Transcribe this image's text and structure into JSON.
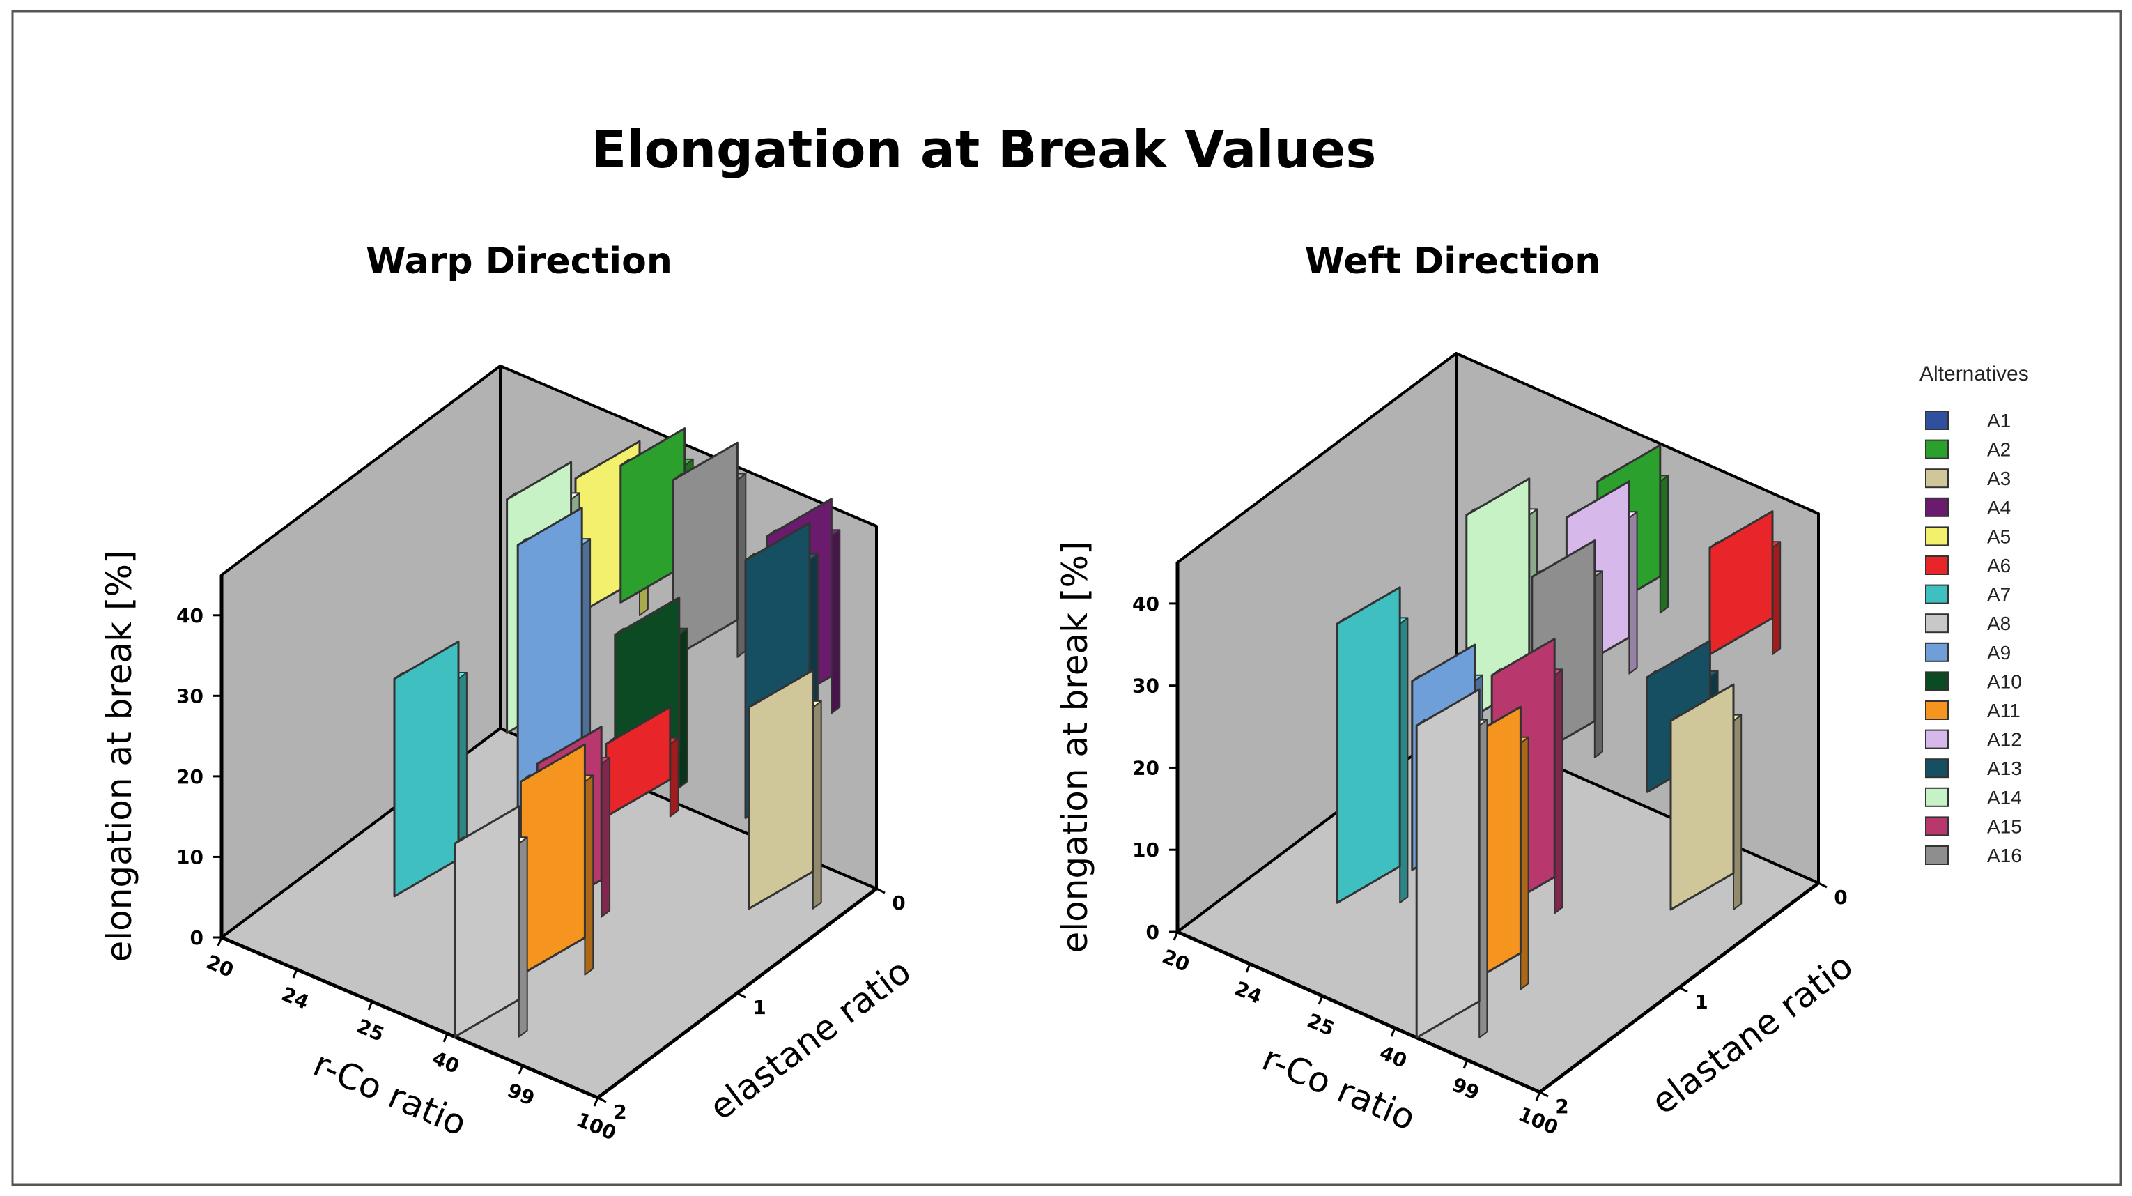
{
  "chart_data": {
    "type": "bar",
    "title": "Elongation at Break Values",
    "legend_title": "Alternatives",
    "legend_position": "right",
    "legend": [
      {
        "name": "A1",
        "color": "#2f4f9f"
      },
      {
        "name": "A2",
        "color": "#2ca02c"
      },
      {
        "name": "A3",
        "color": "#cfc69a"
      },
      {
        "name": "A4",
        "color": "#6a1b6e"
      },
      {
        "name": "A5",
        "color": "#f2f06c"
      },
      {
        "name": "A6",
        "color": "#e8262a"
      },
      {
        "name": "A7",
        "color": "#3fbfbf"
      },
      {
        "name": "A8",
        "color": "#c8c8c8"
      },
      {
        "name": "A9",
        "color": "#6f9fd8"
      },
      {
        "name": "A10",
        "color": "#0b4a22"
      },
      {
        "name": "A11",
        "color": "#f5951f"
      },
      {
        "name": "A12",
        "color": "#d7b8ea"
      },
      {
        "name": "A13",
        "color": "#174f62"
      },
      {
        "name": "A14",
        "color": "#c6f2c6"
      },
      {
        "name": "A15",
        "color": "#b8386e"
      },
      {
        "name": "A16",
        "color": "#8e8e8e"
      }
    ],
    "charts": [
      {
        "title": "Warp Direction",
        "xlabel": "r-Co ratio",
        "ylabel": "elongation at break [%]",
        "zlabel": "elastane  ratio",
        "x_ticks": [
          "20",
          "24",
          "25",
          "40",
          "99",
          "100"
        ],
        "z_ticks": [
          "0",
          "1",
          "2"
        ],
        "y_ticks": [
          "0",
          "10",
          "20",
          "30",
          "40"
        ],
        "ylim": [
          0,
          45
        ],
        "bars": [
          {
            "name": "A5",
            "x": 1,
            "z": 0,
            "base": 18,
            "value": 35
          },
          {
            "name": "A2",
            "x": 1.6,
            "z": 0,
            "base": 22,
            "value": 39
          },
          {
            "name": "A14",
            "x": 1.2,
            "z": 0.6,
            "base": 12,
            "value": 41
          },
          {
            "name": "A16",
            "x": 2.3,
            "z": 0,
            "base": 18,
            "value": 40
          },
          {
            "name": "A9",
            "x": 1.9,
            "z": 0.9,
            "base": 8,
            "value": 42
          },
          {
            "name": "A7",
            "x": 1,
            "z": 1.3,
            "base": 0,
            "value": 27
          },
          {
            "name": "A4",
            "x": 3.55,
            "z": 0,
            "base": 16,
            "value": 38
          },
          {
            "name": "A13",
            "x": 4,
            "z": 0.4,
            "base": 10,
            "value": 42
          },
          {
            "name": "A10",
            "x": 3.1,
            "z": 0.85,
            "base": 16,
            "value": 35
          },
          {
            "name": "A6",
            "x": 3.35,
            "z": 1.05,
            "base": 16,
            "value": 25
          },
          {
            "name": "A15",
            "x": 2.9,
            "z": 1.3,
            "base": 5,
            "value": 24
          },
          {
            "name": "A11",
            "x": 3.05,
            "z": 1.5,
            "base": 1,
            "value": 25
          },
          {
            "name": "A8",
            "x": 3.1,
            "z": 2.0,
            "base": 0,
            "value": 24
          },
          {
            "name": "A3",
            "x": 4.6,
            "z": 0.7,
            "base": 5,
            "value": 30
          }
        ]
      },
      {
        "title": "Weft Direction",
        "xlabel": "r-Co ratio",
        "ylabel": "elongation at break [%]",
        "zlabel": "elastane  ratio",
        "x_ticks": [
          "20",
          "24",
          "25",
          "40",
          "99",
          "100"
        ],
        "z_ticks": [
          "0",
          "1",
          "2"
        ],
        "y_ticks": [
          "0",
          "10",
          "20",
          "30",
          "40"
        ],
        "ylim": [
          0,
          45
        ],
        "bars": [
          {
            "name": "A2",
            "x": 1.95,
            "z": 0,
            "base": 21,
            "value": 37
          },
          {
            "name": "A12",
            "x": 2.1,
            "z": 0.3,
            "base": 18,
            "value": 37
          },
          {
            "name": "A16",
            "x": 2.2,
            "z": 0.6,
            "base": 12,
            "value": 34
          },
          {
            "name": "A14",
            "x": 1.2,
            "z": 0.55,
            "base": 12,
            "value": 37
          },
          {
            "name": "A9",
            "x": 1.7,
            "z": 1.2,
            "base": 4,
            "value": 27
          },
          {
            "name": "A7",
            "x": 1.05,
            "z": 1.4,
            "base": 0,
            "value": 34
          },
          {
            "name": "A6",
            "x": 3.5,
            "z": 0,
            "base": 22,
            "value": 35
          },
          {
            "name": "A13",
            "x": 3.6,
            "z": 0.5,
            "base": 12,
            "value": 26
          },
          {
            "name": "A15",
            "x": 2.8,
            "z": 1.2,
            "base": 3,
            "value": 32
          },
          {
            "name": "A11",
            "x": 3.1,
            "z": 1.6,
            "base": 0,
            "value": 30
          },
          {
            "name": "A8",
            "x": 3.3,
            "z": 2.0,
            "base": 0,
            "value": 38
          },
          {
            "name": "A3",
            "x": 4.5,
            "z": 0.8,
            "base": 5,
            "value": 28
          }
        ]
      }
    ]
  }
}
